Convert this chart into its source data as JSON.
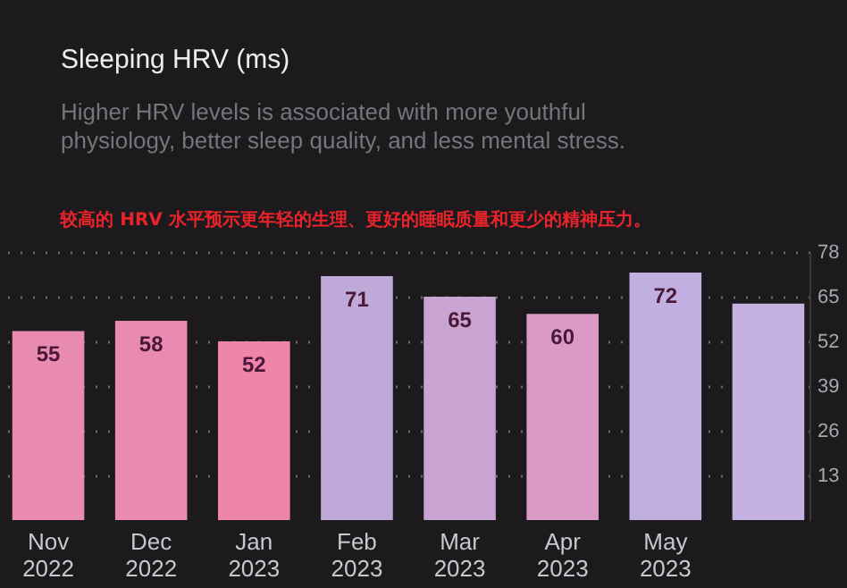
{
  "chart_data": {
    "type": "bar",
    "title": "Sleeping HRV (ms)",
    "subtitle": "Higher HRV levels is associated with more youthful physiology, better sleep quality, and less mental stress.",
    "annotations": [
      "较高的 HRV 水平预示更年轻的生理、更好的睡眠质量和更少的精神压力。"
    ],
    "categories": [
      "Nov 2022",
      "Dec 2022",
      "Jan 2023",
      "Feb 2023",
      "Mar 2023",
      "Apr 2023",
      "May 2023",
      null
    ],
    "values": [
      55,
      58,
      52,
      71,
      65,
      60,
      72,
      63
    ],
    "value_labels": [
      "55",
      "58",
      "52",
      "71",
      "65",
      "60",
      "72",
      null
    ],
    "colors": [
      "#e98bb1",
      "#e98bb1",
      "#f085aa",
      "#bfa9d9",
      "#c9a4d2",
      "#db9ac5",
      "#c1afe1",
      "#c4b1e1"
    ],
    "ylim": [
      0,
      78
    ],
    "yticks": [
      13,
      26,
      39,
      52,
      65,
      78
    ],
    "grid": "y"
  }
}
